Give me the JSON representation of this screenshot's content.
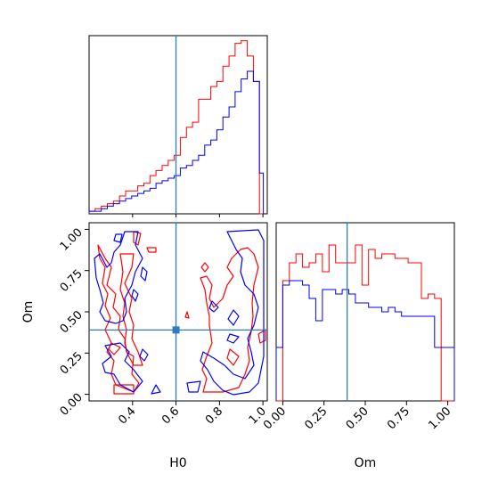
{
  "chart_data": {
    "type": "corner",
    "axis_labels": {
      "x_left": "H0",
      "x_right": "Om",
      "y_left": "Om"
    },
    "series_colors": {
      "red": "#ff0000",
      "blue": "#0000ff"
    },
    "truth": {
      "H0": 0.6,
      "Om": 0.39
    },
    "truth_color": "#2f7bbf",
    "panels": {
      "H0_hist": {
        "xlim": [
          0.2,
          1.02
        ],
        "bin_edges": [
          0.2,
          0.228,
          0.256,
          0.284,
          0.312,
          0.34,
          0.368,
          0.396,
          0.424,
          0.452,
          0.48,
          0.508,
          0.536,
          0.564,
          0.592,
          0.62,
          0.648,
          0.676,
          0.704,
          0.732,
          0.76,
          0.788,
          0.816,
          0.844,
          0.872,
          0.9,
          0.928,
          0.956,
          0.984,
          1.002
        ],
        "red": [
          1,
          2,
          3,
          4,
          5,
          7,
          9,
          9,
          11,
          12,
          15,
          17,
          19,
          21,
          23,
          30,
          34,
          36,
          45,
          45,
          50,
          52,
          58,
          62,
          67,
          68,
          62,
          52,
          0
        ],
        "blue": [
          1,
          1,
          2,
          3,
          4,
          5,
          6,
          7,
          8,
          9,
          10,
          12,
          13,
          14,
          15,
          18,
          19,
          21,
          23,
          27,
          29,
          33,
          38,
          42,
          48,
          53,
          56,
          52,
          16
        ],
        "ylim": [
          0,
          70
        ]
      },
      "Om_hist": {
        "xlim": [
          -0.04,
          1.04
        ],
        "ticks": [
          "0.00",
          "0.25",
          "0.50",
          "0.75",
          "1.00"
        ],
        "bin_edges": [
          -0.04,
          0.0,
          0.04,
          0.08,
          0.12,
          0.16,
          0.2,
          0.24,
          0.28,
          0.32,
          0.36,
          0.4,
          0.44,
          0.48,
          0.52,
          0.56,
          0.6,
          0.64,
          0.68,
          0.72,
          0.76,
          0.8,
          0.84,
          0.88,
          0.92,
          0.96,
          1.0,
          1.04
        ],
        "red": [
          0,
          27,
          31,
          33,
          30,
          31,
          33,
          29,
          35,
          31,
          31,
          31,
          35,
          26,
          34,
          32,
          33,
          33,
          32,
          32,
          31,
          31,
          23,
          24,
          23,
          0,
          0
        ],
        "blue": [
          12,
          26,
          27,
          27,
          26,
          23,
          18,
          25,
          25,
          24,
          25,
          24,
          22,
          22,
          21,
          21,
          20,
          21,
          20,
          19,
          19,
          19,
          19,
          19,
          12,
          12,
          12
        ],
        "ylim": [
          0,
          40
        ]
      },
      "H0_Om_contour": {
        "xlim": [
          0.2,
          1.02
        ],
        "ylim": [
          -0.04,
          1.04
        ],
        "x_ticks": [
          "0.4",
          "0.6",
          "0.8",
          "1.0"
        ],
        "y_ticks": [
          "0.00",
          "0.25",
          "0.50",
          "0.75",
          "1.00"
        ]
      }
    }
  }
}
